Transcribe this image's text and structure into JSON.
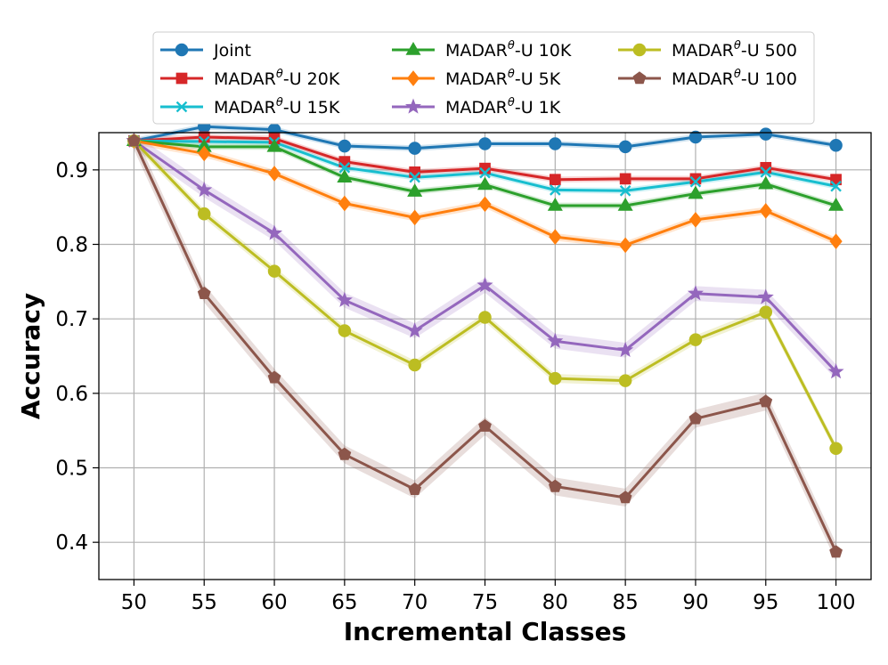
{
  "chart_data": {
    "type": "line",
    "title": "",
    "xlabel": "Incremental Classes",
    "ylabel": "Accuracy",
    "x": [
      50,
      55,
      60,
      65,
      70,
      75,
      80,
      85,
      90,
      95,
      100
    ],
    "xlim": [
      47.5,
      102.5
    ],
    "ylim": [
      0.35,
      0.95
    ],
    "yticks": [
      0.4,
      0.5,
      0.6,
      0.7,
      0.8,
      0.9
    ],
    "ytick_labels": [
      "0.4",
      "0.5",
      "0.6",
      "0.7",
      "0.8",
      "0.9"
    ],
    "xtick_labels": [
      "50",
      "55",
      "60",
      "65",
      "70",
      "75",
      "80",
      "85",
      "90",
      "95",
      "100"
    ],
    "grid": true,
    "legend_position": "top-center (above plot, 3 columns)",
    "series": [
      {
        "name": "Joint",
        "name_base": "Joint",
        "name_sup": "",
        "name_suffix": "",
        "color": "#1f77b4",
        "marker": "circle",
        "values": [
          0.939,
          0.958,
          0.954,
          0.932,
          0.929,
          0.935,
          0.935,
          0.931,
          0.944,
          0.948,
          0.933
        ],
        "band": 0.004
      },
      {
        "name": "MADARθ-U 20K",
        "name_base": "MADAR",
        "name_sup": "θ",
        "name_suffix": "-U 20K",
        "color": "#d62728",
        "marker": "square",
        "values": [
          0.939,
          0.944,
          0.942,
          0.911,
          0.897,
          0.902,
          0.887,
          0.888,
          0.888,
          0.903,
          0.887
        ],
        "band": 0.004
      },
      {
        "name": "MADARθ-U 15K",
        "name_base": "MADAR",
        "name_sup": "θ",
        "name_suffix": "-U 15K",
        "color": "#17becf",
        "marker": "x",
        "values": [
          0.939,
          0.938,
          0.937,
          0.903,
          0.89,
          0.896,
          0.873,
          0.872,
          0.884,
          0.897,
          0.878
        ],
        "band": 0.004
      },
      {
        "name": "MADARθ-U 10K",
        "name_base": "MADAR",
        "name_sup": "θ",
        "name_suffix": "-U 10K",
        "color": "#2ca02c",
        "marker": "triangle",
        "values": [
          0.939,
          0.931,
          0.931,
          0.89,
          0.871,
          0.88,
          0.852,
          0.852,
          0.868,
          0.881,
          0.852
        ],
        "band": 0.004
      },
      {
        "name": "MADARθ-U 5K",
        "name_base": "MADAR",
        "name_sup": "θ",
        "name_suffix": "-U 5K",
        "color": "#ff7f0e",
        "marker": "diamond",
        "values": [
          0.939,
          0.922,
          0.895,
          0.855,
          0.836,
          0.854,
          0.81,
          0.799,
          0.833,
          0.845,
          0.804
        ],
        "band": 0.005
      },
      {
        "name": "MADARθ-U 1K",
        "name_base": "MADAR",
        "name_sup": "θ",
        "name_suffix": "-U 1K",
        "color": "#9467bd",
        "marker": "star",
        "values": [
          0.939,
          0.873,
          0.815,
          0.725,
          0.684,
          0.745,
          0.67,
          0.658,
          0.734,
          0.729,
          0.629
        ],
        "band": 0.01
      },
      {
        "name": "MADARθ-U 500",
        "name_base": "MADAR",
        "name_sup": "θ",
        "name_suffix": "-U 500",
        "color": "#bcbd22",
        "marker": "circle",
        "values": [
          0.939,
          0.841,
          0.764,
          0.684,
          0.638,
          0.702,
          0.62,
          0.617,
          0.672,
          0.709,
          0.526
        ],
        "band": 0.006
      },
      {
        "name": "MADARθ-U 100",
        "name_base": "MADAR",
        "name_sup": "θ",
        "name_suffix": "-U 100",
        "color": "#8c564b",
        "marker": "pentagon",
        "values": [
          0.939,
          0.734,
          0.621,
          0.518,
          0.471,
          0.556,
          0.475,
          0.46,
          0.566,
          0.589,
          0.387
        ],
        "band": 0.012
      }
    ]
  }
}
